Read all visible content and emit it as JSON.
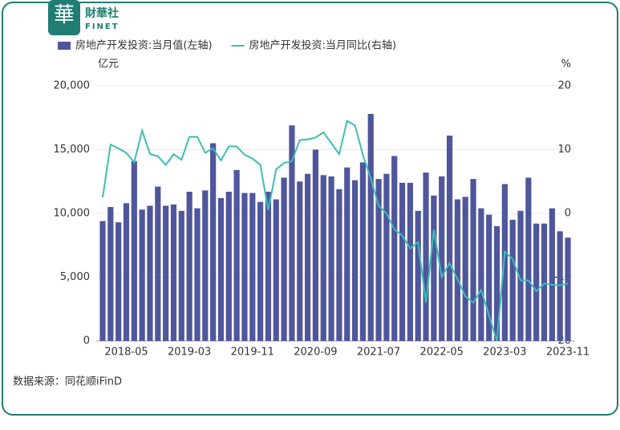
{
  "brand": {
    "logo_char": "華",
    "name": "財華社",
    "sub": "FINET"
  },
  "source": "数据来源：同花顺iFinD",
  "chart_data": {
    "type": "bar",
    "y_unit": "亿元",
    "y2_unit": "%",
    "categories": [
      null,
      null,
      null,
      "2018-05",
      null,
      null,
      null,
      null,
      null,
      null,
      null,
      "2019-03",
      null,
      null,
      null,
      null,
      null,
      null,
      null,
      "2019-11",
      null,
      null,
      null,
      null,
      null,
      null,
      null,
      "2020-09",
      null,
      null,
      null,
      null,
      null,
      null,
      null,
      "2021-07",
      null,
      null,
      null,
      null,
      null,
      null,
      null,
      "2022-05",
      null,
      null,
      null,
      null,
      null,
      null,
      null,
      "2023-03",
      null,
      null,
      null,
      null,
      null,
      null,
      null,
      "2023-11"
    ],
    "series": [
      {
        "name": "房地产开发投资:当月值(左轴)",
        "type": "bar",
        "color": "#4f569b",
        "values": [
          9400,
          10500,
          9300,
          10800,
          14100,
          10300,
          10600,
          12100,
          10600,
          10700,
          10200,
          11700,
          10400,
          11800,
          15500,
          11200,
          11700,
          13400,
          11600,
          11600,
          10900,
          11700,
          11100,
          12800,
          16900,
          12500,
          13100,
          15000,
          13000,
          12900,
          11900,
          13600,
          12600,
          14000,
          17800,
          12700,
          13100,
          14500,
          12400,
          12400,
          10200,
          13200,
          11400,
          12900,
          16100,
          11100,
          11300,
          12700,
          10400,
          9900,
          9000,
          12300,
          9500,
          10200,
          12800,
          9200,
          9200,
          10400,
          8600,
          8100
        ]
      },
      {
        "name": "房地产开发投资:当月同比(右轴)",
        "type": "line",
        "axis": "y2",
        "color": "#3dbdb5",
        "values": [
          2.5,
          10.8,
          10.2,
          9.5,
          8.0,
          13.0,
          9.3,
          9.0,
          7.6,
          9.3,
          8.4,
          12.0,
          12.0,
          9.5,
          10.2,
          8.3,
          10.5,
          10.5,
          9.2,
          8.6,
          7.6,
          0.5,
          6.9,
          7.9,
          8.2,
          11.5,
          11.6,
          11.9,
          12.7,
          11.0,
          9.3,
          14.5,
          13.8,
          9.2,
          5.5,
          1.2,
          0,
          -2.5,
          -3.5,
          -5.5,
          -4.5,
          -14,
          -2.5,
          -10,
          -7.8,
          -10.3,
          -13,
          -14,
          -12,
          -16,
          -20,
          -6,
          -7.2,
          -10.5,
          -10.5,
          -12.2,
          -11,
          -11.2,
          -11.3,
          -11
        ]
      }
    ],
    "ylim": [
      0,
      20000
    ],
    "yticks": [
      0,
      {
        "value": 5000,
        "label": "5,000"
      },
      {
        "value": 10000,
        "label": "10,000"
      },
      {
        "value": 15000,
        "label": "15,000"
      },
      {
        "value": 20000,
        "label": "20,000"
      }
    ],
    "y2lim": [
      -20,
      20
    ],
    "y2ticks": [
      -20,
      -10,
      0,
      10,
      20
    ],
    "grid": true
  }
}
